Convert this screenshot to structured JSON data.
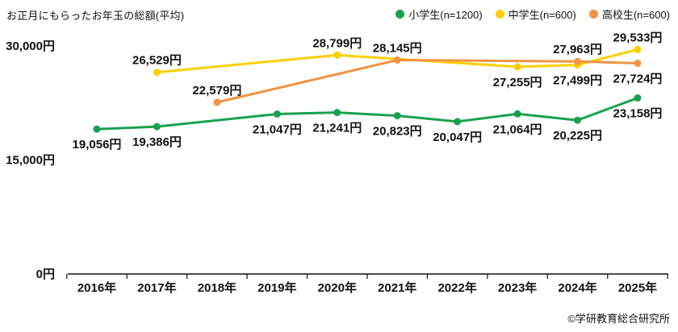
{
  "title": "お正月にもらったお年玉の総額(平均)",
  "copyright": "©学研教育総合研究所",
  "chart_data": {
    "type": "line",
    "x": [
      2016,
      2017,
      2018,
      2019,
      2020,
      2021,
      2022,
      2023,
      2024,
      2025
    ],
    "x_tick_labels": [
      "2016年",
      "2017年",
      "2018年",
      "2019年",
      "2020年",
      "2021年",
      "2022年",
      "2023年",
      "2024年",
      "2025年"
    ],
    "y_ticks": [
      0,
      15000,
      30000
    ],
    "y_tick_labels": [
      "0円",
      "15,000円",
      "30,000円"
    ],
    "ylim": [
      0,
      30000
    ],
    "unit": "円",
    "grid": false,
    "legend_position": "top-right",
    "series": [
      {
        "name": "小学生(n=1200)",
        "color": "#18a14d",
        "points": [
          {
            "x": 2016,
            "y": 19056,
            "label": "19,056円",
            "label_pos": "below"
          },
          {
            "x": 2017,
            "y": 19386,
            "label": "19,386円",
            "label_pos": "below"
          },
          {
            "x": 2019,
            "y": 21047,
            "label": "21,047円",
            "label_pos": "below"
          },
          {
            "x": 2020,
            "y": 21241,
            "label": "21,241円",
            "label_pos": "below"
          },
          {
            "x": 2021,
            "y": 20823,
            "label": "20,823円",
            "label_pos": "below"
          },
          {
            "x": 2022,
            "y": 20047,
            "label": "20,047円",
            "label_pos": "below"
          },
          {
            "x": 2023,
            "y": 21064,
            "label": "21,064円",
            "label_pos": "below"
          },
          {
            "x": 2024,
            "y": 20225,
            "label": "20,225円",
            "label_pos": "below"
          },
          {
            "x": 2025,
            "y": 23158,
            "label": "23,158円",
            "label_pos": "below"
          }
        ]
      },
      {
        "name": "中学生(n=600)",
        "color": "#fccf00",
        "points": [
          {
            "x": 2017,
            "y": 26529,
            "label": "26,529円",
            "label_pos": "above"
          },
          {
            "x": 2020,
            "y": 28799,
            "label": "28,799円",
            "label_pos": "above"
          },
          {
            "x": 2023,
            "y": 27255,
            "label": "27,255円",
            "label_pos": "below"
          },
          {
            "x": 2024,
            "y": 27499,
            "label": "27,499円",
            "label_pos": "below"
          },
          {
            "x": 2025,
            "y": 29533,
            "label": "29,533円",
            "label_pos": "above"
          }
        ]
      },
      {
        "name": "高校生(n=600)",
        "color": "#f09342",
        "points": [
          {
            "x": 2018,
            "y": 22579,
            "label": "22,579円",
            "label_pos": "above"
          },
          {
            "x": 2021,
            "y": 28145,
            "label": "28,145円",
            "label_pos": "above"
          },
          {
            "x": 2024,
            "y": 27963,
            "label": "27,963円",
            "label_pos": "above"
          },
          {
            "x": 2025,
            "y": 27724,
            "label": "27,724円",
            "label_pos": "below"
          }
        ]
      }
    ]
  }
}
